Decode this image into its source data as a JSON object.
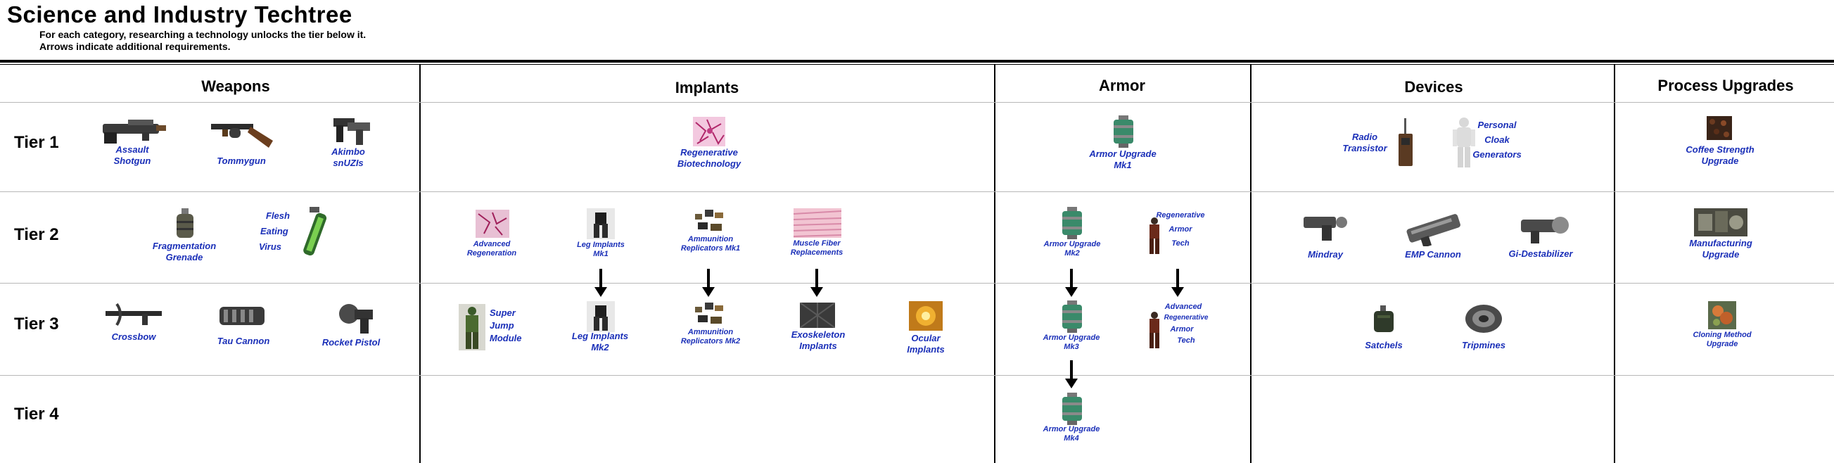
{
  "title": "Science and Industry Techtree",
  "subtitle_lines": [
    "For each category, researching a technology unlocks the tier below it.",
    "Arrows indicate additional requirements."
  ],
  "tiers": [
    "Tier 1",
    "Tier 2",
    "Tier 3",
    "Tier 4"
  ],
  "categories": [
    "Weapons",
    "Implants",
    "Armor",
    "Devices",
    "Process Upgrades"
  ],
  "items": {
    "assault_shotgun": [
      "Assault",
      "Shotgun"
    ],
    "tommygun": [
      "Tommygun"
    ],
    "akimbo_snuzis": [
      "Akimbo",
      "snUZIs"
    ],
    "regen_biotech": [
      "Regenerative",
      "Biotechnology"
    ],
    "armor_mk1": [
      "Armor Upgrade",
      "Mk1"
    ],
    "radio_transistor": [
      "Radio",
      "Transistor"
    ],
    "personal_cloak": [
      "Personal",
      "Cloak",
      "Generators"
    ],
    "coffee_strength": [
      "Coffee Strength",
      "Upgrade"
    ],
    "frag_grenade": [
      "Fragmentation",
      "Grenade"
    ],
    "flesh_eating_virus": [
      "Flesh",
      "Eating",
      "Virus"
    ],
    "advanced_regeneration": [
      "Advanced",
      "Regeneration"
    ],
    "leg_implants_mk1": [
      "Leg Implants",
      "Mk1"
    ],
    "ammo_replicators_mk1": [
      "Ammunition",
      "Replicators Mk1"
    ],
    "muscle_fiber": [
      "Muscle Fiber",
      "Replacements"
    ],
    "armor_mk2": [
      "Armor Upgrade",
      "Mk2"
    ],
    "regen_armor_tech": [
      "Regenerative",
      "Armor",
      "Tech"
    ],
    "mindray": [
      "Mindray"
    ],
    "emp_cannon": [
      "EMP Cannon"
    ],
    "gi_destabilizer": [
      "Gi-Destabilizer"
    ],
    "manufacturing": [
      "Manufacturing",
      "Upgrade"
    ],
    "crossbow": [
      "Crossbow"
    ],
    "tau_cannon": [
      "Tau Cannon"
    ],
    "rocket_pistol": [
      "Rocket Pistol"
    ],
    "super_jump": [
      "Super",
      "Jump",
      "Module"
    ],
    "leg_implants_mk2": [
      "Leg Implants",
      "Mk2"
    ],
    "ammo_replicators_mk2": [
      "Ammunition",
      "Replicators Mk2"
    ],
    "exoskeleton": [
      "Exoskeleton",
      "Implants"
    ],
    "ocular": [
      "Ocular",
      "Implants"
    ],
    "armor_mk3": [
      "Armor Upgrade",
      "Mk3"
    ],
    "adv_regen_armor_tech": [
      "Advanced",
      "Regenerative",
      "Armor",
      "Tech"
    ],
    "satchels": [
      "Satchels"
    ],
    "tripmines": [
      "Tripmines"
    ],
    "cloning_method": [
      "Cloning Method",
      "Upgrade"
    ],
    "armor_mk4": [
      "Armor Upgrade",
      "Mk4"
    ]
  },
  "arrows": [
    "leg_implants_mk1 -> leg_implants_mk2",
    "ammo_replicators_mk1 -> ammo_replicators_mk2",
    "muscle_fiber -> exoskeleton",
    "armor_mk2 -> armor_mk3",
    "regen_armor_tech -> adv_regen_armor_tech",
    "armor_mk3 -> armor_mk4"
  ],
  "colors": {
    "label_blue": "#1a2fb8",
    "text": "#000000",
    "grid": "#b8b8b8",
    "armor_green": "#3a8a6a"
  }
}
